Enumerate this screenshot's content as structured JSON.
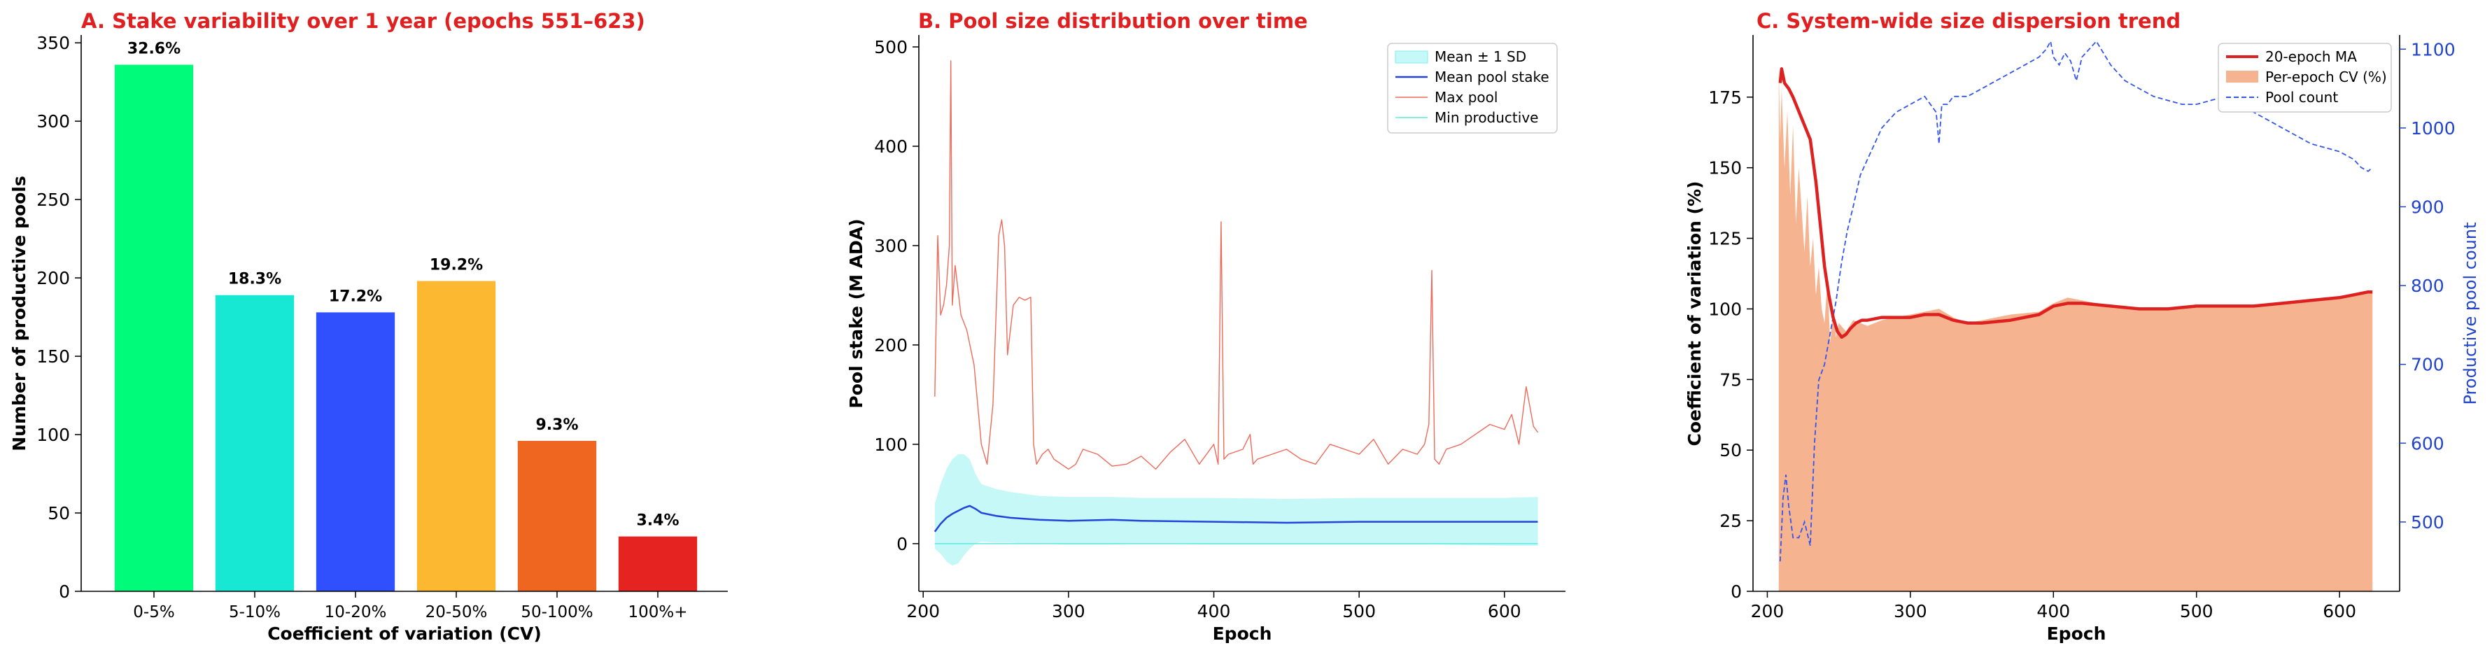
{
  "colors": {
    "title_red": "#e02020",
    "mean_line": "#2244dd",
    "band_fill": "#7ff0ec",
    "max_line": "#ee6a5a",
    "min_line": "#60e8e0",
    "ma_line": "#dd2020",
    "cv_fill": "#f5b48f",
    "pool_count": "#3355ee",
    "right_axis": "#2244cc"
  },
  "chart_data": [
    {
      "type": "bar",
      "title": "A. Stake variability over 1 year (epochs 551–623)",
      "xlabel": "Coefficient of variation (CV)",
      "ylabel": "Number of productive pools",
      "categories": [
        "0-5%",
        "5-10%",
        "10-20%",
        "20-50%",
        "50-100%",
        "100%+"
      ],
      "values": [
        336,
        189,
        178,
        198,
        96,
        35
      ],
      "data_labels": [
        "32.6%",
        "18.3%",
        "17.2%",
        "19.2%",
        "9.3%",
        "3.4%"
      ],
      "bar_colors": [
        "#00fa7a",
        "#17e8d4",
        "#2f50fc",
        "#fdb832",
        "#ef6620",
        "#e52421"
      ],
      "ylim": [
        0,
        355
      ],
      "yticks": [
        "0",
        "50",
        "100",
        "150",
        "200",
        "250",
        "300",
        "350"
      ],
      "grid": false
    },
    {
      "type": "line",
      "title": "B. Pool size distribution over time",
      "xlabel": "Epoch",
      "ylabel": "Pool stake (M ADA)",
      "xlim": [
        197,
        642
      ],
      "ylim": [
        -48,
        512
      ],
      "xticks": [
        "200",
        "300",
        "400",
        "500",
        "600"
      ],
      "yticks": [
        "0",
        "100",
        "200",
        "300",
        "400",
        "500"
      ],
      "legend_position": "top-right",
      "legend": [
        "Mean ± 1 SD",
        "Mean pool stake",
        "Max pool",
        "Min productive"
      ],
      "series": [
        {
          "name": "Mean pool stake",
          "x": [
            208,
            212,
            216,
            220,
            224,
            228,
            232,
            236,
            240,
            250,
            260,
            270,
            280,
            300,
            330,
            350,
            400,
            450,
            500,
            550,
            600,
            623
          ],
          "y": [
            12,
            20,
            26,
            30,
            33,
            36,
            38,
            35,
            31,
            28,
            26,
            25,
            24,
            23,
            24,
            23,
            22,
            21,
            22,
            22,
            22,
            22
          ]
        },
        {
          "name": "Mean ± 1 SD (upper)",
          "x": [
            208,
            212,
            216,
            220,
            224,
            228,
            232,
            236,
            240,
            250,
            260,
            270,
            280,
            300,
            330,
            350,
            400,
            450,
            500,
            550,
            600,
            623
          ],
          "y": [
            40,
            60,
            75,
            85,
            90,
            90,
            85,
            70,
            60,
            55,
            52,
            50,
            48,
            47,
            47,
            46,
            46,
            45,
            46,
            46,
            46,
            47
          ]
        },
        {
          "name": "Mean ± 1 SD (lower)",
          "x": [
            208,
            212,
            216,
            220,
            224,
            228,
            232,
            236,
            240,
            250,
            260,
            270,
            280,
            300,
            330,
            350,
            400,
            450,
            500,
            550,
            600,
            623
          ],
          "y": [
            -5,
            -10,
            -18,
            -22,
            -20,
            -12,
            -5,
            0,
            2,
            1,
            1,
            0,
            0,
            -1,
            -1,
            0,
            -1,
            -1,
            -1,
            -1,
            -2,
            -2
          ]
        },
        {
          "name": "Max pool",
          "x": [
            208,
            210,
            212,
            214,
            216,
            218,
            219,
            220,
            222,
            226,
            230,
            235,
            240,
            244,
            248,
            252,
            254,
            256,
            258,
            262,
            266,
            270,
            274,
            276,
            278,
            282,
            286,
            290,
            295,
            300,
            305,
            310,
            320,
            330,
            340,
            350,
            360,
            370,
            380,
            390,
            400,
            403,
            405,
            407,
            410,
            420,
            425,
            427,
            430,
            440,
            450,
            460,
            470,
            480,
            490,
            500,
            510,
            520,
            530,
            540,
            545,
            548,
            550,
            552,
            555,
            560,
            570,
            580,
            590,
            600,
            605,
            610,
            615,
            620,
            623
          ],
          "y": [
            148,
            310,
            230,
            240,
            260,
            300,
            486,
            240,
            280,
            230,
            215,
            180,
            100,
            80,
            140,
            310,
            326,
            300,
            190,
            240,
            248,
            245,
            248,
            100,
            80,
            90,
            95,
            85,
            80,
            75,
            80,
            95,
            90,
            78,
            80,
            88,
            75,
            92,
            105,
            80,
            100,
            80,
            324,
            85,
            90,
            95,
            110,
            80,
            85,
            90,
            95,
            85,
            80,
            100,
            95,
            90,
            105,
            80,
            95,
            90,
            100,
            120,
            275,
            85,
            80,
            95,
            100,
            110,
            120,
            115,
            130,
            100,
            158,
            118,
            112
          ]
        },
        {
          "name": "Min productive",
          "x": [
            208,
            230,
            260,
            300,
            400,
            500,
            600,
            623
          ],
          "y": [
            0,
            0,
            0,
            0,
            0,
            0,
            0,
            0
          ]
        }
      ]
    },
    {
      "type": "area",
      "title": "C. System-wide size dispersion trend",
      "xlabel": "Epoch",
      "ylabel": "Coefficient of variation (%)",
      "y2label": "Productive pool count",
      "xlim": [
        190,
        642
      ],
      "ylim": [
        0,
        197
      ],
      "y2lim": [
        412,
        1118
      ],
      "xticks": [
        "200",
        "300",
        "400",
        "500",
        "600"
      ],
      "yticks": [
        "0",
        "25",
        "50",
        "75",
        "100",
        "125",
        "150",
        "175"
      ],
      "y2ticks": [
        "500",
        "600",
        "700",
        "800",
        "900",
        "1000",
        "1100"
      ],
      "legend_position": "top-right",
      "legend": [
        "20-epoch MA",
        "Per-epoch CV (%)",
        "Pool count"
      ],
      "series": [
        {
          "name": "Per-epoch CV (%)",
          "x": [
            208,
            209,
            210,
            212,
            214,
            216,
            218,
            220,
            222,
            224,
            226,
            228,
            230,
            232,
            234,
            236,
            238,
            240,
            242,
            244,
            246,
            248,
            250,
            255,
            260,
            270,
            280,
            300,
            320,
            330,
            340,
            350,
            370,
            390,
            400,
            410,
            420,
            440,
            460,
            480,
            500,
            520,
            540,
            560,
            580,
            600,
            610,
            620,
            623
          ],
          "y": [
            185,
            160,
            178,
            150,
            170,
            140,
            165,
            130,
            150,
            135,
            120,
            140,
            115,
            125,
            105,
            115,
            100,
            95,
            110,
            88,
            100,
            90,
            95,
            92,
            96,
            94,
            96,
            98,
            100,
            97,
            95,
            96,
            98,
            99,
            102,
            104,
            103,
            101,
            100,
            100,
            101,
            101,
            101,
            102,
            103,
            104,
            105,
            106,
            106
          ]
        },
        {
          "name": "20-epoch MA",
          "x": [
            209,
            210,
            212,
            215,
            218,
            222,
            226,
            230,
            234,
            237,
            240,
            243,
            246,
            249,
            252,
            255,
            258,
            262,
            266,
            270,
            280,
            290,
            300,
            310,
            320,
            330,
            340,
            350,
            370,
            390,
            400,
            410,
            420,
            440,
            460,
            480,
            500,
            520,
            540,
            560,
            580,
            600,
            610,
            620,
            623
          ],
          "y": [
            180,
            185,
            180,
            178,
            175,
            170,
            165,
            160,
            145,
            130,
            115,
            105,
            97,
            92,
            90,
            91,
            93,
            95,
            96,
            96,
            97,
            97,
            97,
            98,
            98,
            96,
            95,
            95,
            96,
            98,
            101,
            102,
            102,
            101,
            100,
            100,
            101,
            101,
            101,
            102,
            103,
            104,
            105,
            106,
            106
          ]
        },
        {
          "name": "Pool count",
          "x": [
            209,
            211,
            213,
            215,
            218,
            222,
            226,
            230,
            233,
            236,
            240,
            244,
            248,
            252,
            256,
            260,
            265,
            270,
            275,
            280,
            290,
            300,
            310,
            318,
            320,
            322,
            326,
            330,
            340,
            350,
            360,
            370,
            380,
            390,
            395,
            398,
            400,
            404,
            408,
            412,
            416,
            420,
            425,
            430,
            435,
            440,
            450,
            460,
            470,
            480,
            490,
            500,
            510,
            520,
            530,
            540,
            550,
            560,
            570,
            580,
            590,
            600,
            605,
            610,
            615,
            620,
            623
          ],
          "y": [
            450,
            530,
            560,
            520,
            480,
            480,
            500,
            470,
            600,
            680,
            700,
            740,
            780,
            830,
            870,
            900,
            940,
            960,
            980,
            1000,
            1020,
            1030,
            1040,
            1020,
            980,
            1030,
            1030,
            1040,
            1040,
            1050,
            1060,
            1070,
            1080,
            1090,
            1100,
            1110,
            1090,
            1080,
            1095,
            1085,
            1060,
            1090,
            1100,
            1110,
            1095,
            1080,
            1060,
            1050,
            1040,
            1035,
            1030,
            1030,
            1035,
            1040,
            1035,
            1020,
            1010,
            1000,
            990,
            980,
            975,
            970,
            965,
            960,
            950,
            945,
            950
          ]
        }
      ]
    }
  ]
}
